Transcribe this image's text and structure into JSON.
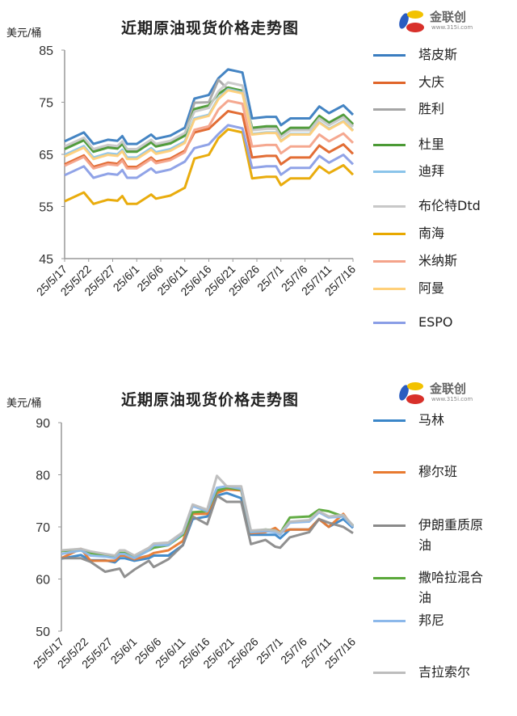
{
  "logo": {
    "name": "金联创",
    "url": "www.315i.com"
  },
  "chart_data": [
    {
      "type": "line",
      "title": "近期原油现货价格走势图",
      "ylabel": "美元/桶",
      "ylim": [
        45,
        85
      ],
      "y_ticks": [
        45,
        55,
        65,
        75,
        85
      ],
      "x_ticks": [
        "25/5/17",
        "25/5/22",
        "25/5/27",
        "25/6/1",
        "25/6/6",
        "25/6/11",
        "25/6/16",
        "25/6/21",
        "25/6/26",
        "25/7/1",
        "25/7/6",
        "25/7/11",
        "25/7/16"
      ],
      "legend": "right",
      "x": [
        "2025-05-17",
        "2025-05-21",
        "2025-05-23",
        "2025-05-26",
        "2025-05-28",
        "2025-05-29",
        "2025-05-30",
        "2025-06-01",
        "2025-06-04",
        "2025-06-05",
        "2025-06-08",
        "2025-06-11",
        "2025-06-13",
        "2025-06-16",
        "2025-06-18",
        "2025-06-20",
        "2025-06-23",
        "2025-06-25",
        "2025-06-28",
        "2025-06-30",
        "2025-07-01",
        "2025-07-03",
        "2025-07-07",
        "2025-07-09",
        "2025-07-11",
        "2025-07-14",
        "2025-07-16"
      ],
      "series": [
        {
          "name": "塔皮斯",
          "color": "#3a7dc0",
          "values": [
            67.5,
            69.2,
            67.0,
            67.8,
            67.6,
            68.5,
            67.0,
            67.0,
            68.8,
            68.0,
            68.6,
            70.1,
            75.7,
            76.4,
            79.6,
            81.3,
            80.7,
            71.9,
            72.2,
            72.2,
            70.6,
            71.9,
            71.9,
            74.2,
            72.9,
            74.4,
            72.6
          ]
        },
        {
          "name": "大庆",
          "color": "#e0652a",
          "values": [
            63.1,
            64.8,
            62.6,
            63.4,
            63.2,
            64.1,
            62.6,
            62.6,
            64.4,
            63.6,
            64.2,
            65.7,
            69.2,
            69.9,
            71.6,
            73.3,
            72.7,
            64.4,
            64.7,
            64.7,
            63.1,
            64.4,
            64.4,
            66.7,
            65.4,
            66.9,
            65.1
          ]
        },
        {
          "name": "胜利",
          "color": "#a5a5a5",
          "values": [
            66.2,
            67.9,
            65.7,
            66.5,
            66.3,
            67.2,
            65.7,
            65.7,
            67.5,
            66.7,
            67.3,
            68.8,
            74.9,
            75.0,
            79.3,
            77.5,
            77.0,
            69.9,
            70.2,
            70.2,
            68.6,
            69.9,
            69.9,
            72.2,
            70.9,
            72.4,
            70.6
          ]
        },
        {
          "name": "杜里",
          "color": "#4b9a35",
          "values": [
            66.0,
            67.7,
            65.5,
            66.3,
            66.1,
            67.0,
            65.5,
            65.5,
            67.3,
            66.5,
            67.1,
            68.6,
            73.7,
            74.4,
            76.6,
            77.8,
            77.2,
            70.1,
            70.4,
            70.4,
            68.8,
            70.1,
            70.1,
            72.4,
            71.1,
            72.6,
            70.8
          ]
        },
        {
          "name": "迪拜",
          "color": "#8ac4ea",
          "values": [
            64.9,
            66.6,
            64.4,
            65.2,
            65.0,
            65.9,
            64.4,
            64.4,
            66.2,
            65.4,
            66.0,
            67.5,
            71.9,
            72.6,
            75.8,
            77.5,
            76.9,
            68.9,
            69.2,
            69.2,
            67.6,
            68.9,
            68.9,
            71.2,
            69.9,
            71.4,
            69.6
          ]
        },
        {
          "name": "布伦特Dtd",
          "color": "#c8c8c8",
          "values": [
            66.5,
            68.2,
            66.0,
            66.8,
            66.6,
            67.5,
            66.0,
            66.0,
            67.8,
            67.0,
            67.6,
            69.1,
            73.2,
            73.9,
            77.1,
            78.8,
            78.2,
            69.6,
            69.9,
            69.9,
            68.3,
            69.6,
            69.6,
            71.9,
            70.6,
            72.1,
            70.3
          ]
        },
        {
          "name": "南海",
          "color": "#e8a800",
          "values": [
            56.0,
            57.7,
            55.5,
            56.3,
            56.1,
            57.0,
            55.5,
            55.5,
            57.3,
            56.5,
            57.1,
            58.6,
            64.2,
            64.9,
            68.1,
            69.8,
            69.2,
            60.4,
            60.7,
            60.7,
            59.1,
            60.4,
            60.4,
            62.7,
            61.4,
            62.9,
            61.1
          ]
        },
        {
          "name": "米纳斯",
          "color": "#f4a38a",
          "values": [
            62.8,
            64.5,
            62.3,
            63.1,
            62.9,
            63.8,
            62.3,
            62.3,
            64.1,
            63.3,
            63.9,
            65.4,
            69.7,
            70.4,
            73.6,
            75.3,
            74.7,
            66.5,
            66.8,
            66.8,
            65.2,
            66.5,
            66.5,
            68.8,
            67.5,
            69.0,
            67.2
          ]
        },
        {
          "name": "阿曼",
          "color": "#ffd07a",
          "values": [
            64.6,
            66.3,
            64.1,
            64.9,
            64.7,
            65.6,
            64.1,
            64.1,
            65.9,
            65.1,
            65.7,
            67.2,
            71.7,
            72.4,
            75.6,
            77.3,
            76.7,
            68.8,
            69.1,
            69.1,
            67.5,
            68.8,
            68.8,
            71.1,
            69.8,
            71.3,
            69.5
          ]
        },
        {
          "name": "ESPO",
          "color": "#8a9ee6",
          "values": [
            61.0,
            62.7,
            60.5,
            61.3,
            61.1,
            62.0,
            60.5,
            60.5,
            62.3,
            61.5,
            62.1,
            63.6,
            66.2,
            66.9,
            68.9,
            70.6,
            70.0,
            62.4,
            62.7,
            62.7,
            61.1,
            62.4,
            62.4,
            64.7,
            63.4,
            64.9,
            63.1
          ]
        }
      ]
    },
    {
      "type": "line",
      "title": "近期原油现货价格走势图",
      "ylabel": "美元/桶",
      "ylim": [
        50,
        90
      ],
      "y_ticks": [
        50,
        60,
        70,
        80,
        90
      ],
      "x_ticks": [
        "25/5/17",
        "25/5/22",
        "25/5/27",
        "25/6/1",
        "25/6/6",
        "25/6/11",
        "25/6/16",
        "25/6/21",
        "25/6/26",
        "25/7/1",
        "25/7/6",
        "25/7/11",
        "25/7/16"
      ],
      "legend": "right",
      "x": [
        "2025-05-17",
        "2025-05-21",
        "2025-05-23",
        "2025-05-26",
        "2025-05-28",
        "2025-05-29",
        "2025-05-30",
        "2025-06-01",
        "2025-06-04",
        "2025-06-05",
        "2025-06-08",
        "2025-06-11",
        "2025-06-13",
        "2025-06-16",
        "2025-06-18",
        "2025-06-20",
        "2025-06-23",
        "2025-06-25",
        "2025-06-28",
        "2025-06-30",
        "2025-07-01",
        "2025-07-03",
        "2025-07-07",
        "2025-07-09",
        "2025-07-11",
        "2025-07-14",
        "2025-07-16"
      ],
      "series": [
        {
          "name": "马林",
          "color": "#3a86c8",
          "values": [
            63.9,
            64.6,
            63.6,
            63.6,
            63.2,
            64.0,
            64.0,
            63.5,
            64.0,
            64.5,
            64.5,
            66.5,
            71.5,
            72.0,
            76.0,
            76.5,
            75.5,
            68.5,
            68.5,
            68.5,
            67.8,
            69.5,
            69.5,
            71.5,
            70.0,
            71.5,
            69.8
          ]
        },
        {
          "name": "穆尔班",
          "color": "#e87a30",
          "values": [
            64.0,
            65.8,
            63.5,
            63.5,
            63.5,
            64.5,
            64.5,
            63.8,
            64.5,
            65.0,
            65.5,
            67.3,
            72.5,
            72.5,
            76.5,
            77.2,
            77.0,
            68.8,
            69.0,
            69.8,
            69.0,
            69.5,
            69.5,
            71.5,
            70.0,
            72.5,
            70.0
          ]
        },
        {
          "name": "伊朗重质原油",
          "label_lines": [
            "伊朗重质原",
            "油"
          ],
          "color": "#8a8a8a",
          "values": [
            64.0,
            64.0,
            63.3,
            61.4,
            61.8,
            62.0,
            60.4,
            61.8,
            63.5,
            62.3,
            63.8,
            66.5,
            72.0,
            70.5,
            76.0,
            74.8,
            74.8,
            66.7,
            67.5,
            66.2,
            66.0,
            68.0,
            69.0,
            71.5,
            70.8,
            70.0,
            68.8
          ]
        },
        {
          "name": "撒哈拉混合油",
          "label_lines": [
            "撒哈拉混合",
            "油"
          ],
          "color": "#5aa83a",
          "values": [
            65.4,
            65.5,
            65.0,
            64.5,
            64.3,
            65.0,
            65.0,
            64.2,
            65.5,
            66.0,
            66.5,
            68.5,
            72.8,
            73.0,
            77.0,
            77.5,
            77.2,
            69.0,
            69.5,
            69.3,
            68.8,
            71.8,
            72.0,
            73.3,
            73.0,
            72.0,
            70.2
          ]
        },
        {
          "name": "邦尼",
          "color": "#8cb8ea",
          "values": [
            64.8,
            65.5,
            64.5,
            64.3,
            64.0,
            64.8,
            64.8,
            64.0,
            65.5,
            66.5,
            66.5,
            68.8,
            74.0,
            73.0,
            77.5,
            77.8,
            77.3,
            69.0,
            69.2,
            69.0,
            68.5,
            70.8,
            71.0,
            72.8,
            71.8,
            72.0,
            70.0
          ]
        },
        {
          "name": "吉拉索尔",
          "color": "#bdbdbd",
          "values": [
            65.5,
            65.8,
            65.3,
            64.8,
            64.5,
            65.5,
            65.5,
            64.5,
            66.0,
            66.8,
            67.0,
            69.0,
            74.3,
            73.3,
            79.8,
            77.8,
            77.8,
            69.3,
            69.5,
            69.3,
            68.8,
            71.0,
            71.3,
            73.0,
            72.0,
            72.3,
            70.3
          ]
        }
      ]
    }
  ]
}
